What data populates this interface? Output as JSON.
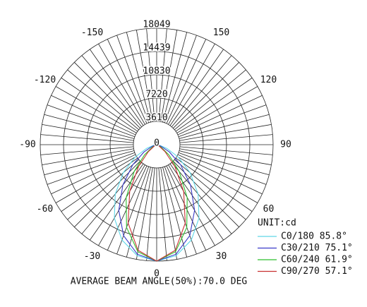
{
  "chart_data": {
    "type": "polar",
    "rlim": [
      0,
      18049
    ],
    "rticks": [
      0,
      3610,
      7220,
      10830,
      14439,
      18049
    ],
    "angle_ticks": [
      -150,
      -120,
      -90,
      -60,
      -30,
      0,
      30,
      60,
      90,
      120,
      150
    ],
    "angles": [
      -90,
      -80,
      -70,
      -60,
      -50,
      -40,
      -30,
      -20,
      -10,
      0,
      10,
      20,
      30,
      40,
      50,
      60,
      70,
      80,
      90
    ],
    "unit": "UNIT:cd",
    "series": [
      {
        "name": "C0/180 85.8°",
        "color": "#5fd8e8",
        "values": [
          0,
          370,
          1660,
          3880,
          6770,
          9980,
          13120,
          15720,
          17450,
          18049,
          17450,
          15720,
          13120,
          9980,
          6770,
          3880,
          1660,
          370,
          0
        ]
      },
      {
        "name": "C30/210 75.1°",
        "color": "#3a3ac8",
        "values": [
          0,
          100,
          740,
          2290,
          4840,
          8160,
          11750,
          15000,
          17240,
          18049,
          17240,
          15000,
          11750,
          8160,
          4840,
          2290,
          740,
          100,
          0
        ]
      },
      {
        "name": "C60/240 61.9°",
        "color": "#2fbf2f",
        "values": [
          0,
          0,
          140,
          790,
          2470,
          5430,
          9460,
          13640,
          16840,
          18049,
          16840,
          13640,
          9460,
          5430,
          2470,
          790,
          140,
          0,
          0
        ]
      },
      {
        "name": "C90/270 57.1°",
        "color": "#c83030",
        "values": [
          0,
          0,
          60,
          450,
          1700,
          4350,
          8370,
          12940,
          16620,
          18049,
          16620,
          12940,
          8370,
          4350,
          1700,
          450,
          60,
          0,
          0
        ]
      }
    ],
    "note": "AVERAGE BEAM ANGLE(50%):70.0 DEG"
  }
}
